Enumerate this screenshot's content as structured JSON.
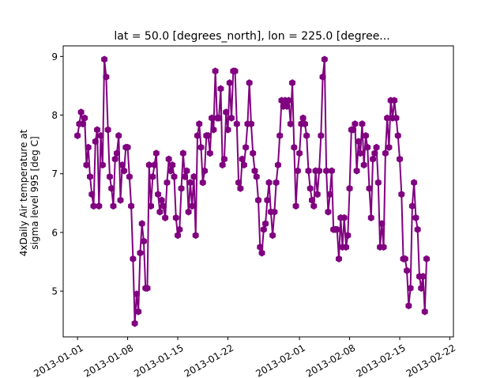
{
  "chart_data": {
    "type": "line",
    "title": "lat = 50.0 [degrees_north], lon = 225.0 [degree...",
    "xlabel": "",
    "ylabel_lines": [
      "4xDaily Air temperature at",
      "sigma level 995 [deg C]"
    ],
    "x_start": "2013-01-01",
    "x_step_hours": 6,
    "xlim": [
      "2012-12-30",
      "2013-02-22T12:00"
    ],
    "ylim": [
      4.22,
      9.18
    ],
    "x_ticks": [
      {
        "date": "2013-01-01",
        "label": "2013-01-01"
      },
      {
        "date": "2013-01-08",
        "label": "2013-01-08"
      },
      {
        "date": "2013-01-15",
        "label": "2013-01-15"
      },
      {
        "date": "2013-01-22",
        "label": "2013-01-22"
      },
      {
        "date": "2013-02-01",
        "label": "2013-02-01"
      },
      {
        "date": "2013-02-08",
        "label": "2013-02-08"
      },
      {
        "date": "2013-02-15",
        "label": "2013-02-15"
      },
      {
        "date": "2013-02-22",
        "label": "2013-02-22"
      }
    ],
    "y_ticks": [
      5,
      6,
      7,
      8,
      9
    ],
    "grid": false,
    "line_color": "#800080",
    "marker": "hexagon",
    "series": [
      {
        "values": [
          7.65,
          7.85,
          8.05,
          7.85,
          7.95,
          7.15,
          7.45,
          6.95,
          6.65,
          6.45,
          7.55,
          7.75,
          6.45,
          7.65,
          7.15,
          8.95,
          8.65,
          7.75,
          6.95,
          6.75,
          6.45,
          7.25,
          7.35,
          7.65,
          6.55,
          7.15,
          7.05,
          7.45,
          7.45,
          6.95,
          6.45,
          5.55,
          4.45,
          4.95,
          4.65,
          5.65,
          6.15,
          5.85,
          5.05,
          5.05,
          7.15,
          6.45,
          6.95,
          7.15,
          7.35,
          6.65,
          6.35,
          6.55,
          6.45,
          6.25,
          6.85,
          7.25,
          7.05,
          7.15,
          6.95,
          6.25,
          5.95,
          6.05,
          6.75,
          7.35,
          6.95,
          7.05,
          6.35,
          6.85,
          6.45,
          6.95,
          5.95,
          7.65,
          7.85,
          7.45,
          6.85,
          7.05,
          7.65,
          7.65,
          7.35,
          7.95,
          7.75,
          8.75,
          7.95,
          7.95,
          8.45,
          7.15,
          7.25,
          8.05,
          7.75,
          8.55,
          7.95,
          8.75,
          8.75,
          7.85,
          6.85,
          6.75,
          7.25,
          7.15,
          7.45,
          7.85,
          8.55,
          7.85,
          7.35,
          7.05,
          6.95,
          6.55,
          5.75,
          5.65,
          6.05,
          6.15,
          6.55,
          6.85,
          6.35,
          5.95,
          6.35,
          6.85,
          7.15,
          7.65,
          8.25,
          8.15,
          8.25,
          8.15,
          8.25,
          7.85,
          8.55,
          7.45,
          6.45,
          7.05,
          7.35,
          7.85,
          7.95,
          7.85,
          7.65,
          7.05,
          6.75,
          6.55,
          6.45,
          7.05,
          6.65,
          7.05,
          7.65,
          8.65,
          8.95,
          7.05,
          6.35,
          6.65,
          7.05,
          6.05,
          6.05,
          6.05,
          5.55,
          6.25,
          5.75,
          6.25,
          5.75,
          5.95,
          6.75,
          7.75,
          7.75,
          7.85,
          7.05,
          7.55,
          7.35,
          7.85,
          7.15,
          7.65,
          7.45,
          6.75,
          6.25,
          7.25,
          7.35,
          7.45,
          6.85,
          5.75,
          6.15,
          5.75,
          7.35,
          7.95,
          7.45,
          8.25,
          7.95,
          8.25,
          7.95,
          7.65,
          7.25,
          6.65,
          5.55,
          5.55,
          5.35,
          4.75,
          5.05,
          6.45,
          6.85,
          6.25,
          6.05,
          5.25,
          5.05,
          5.25,
          4.65,
          5.55
        ]
      }
    ]
  }
}
